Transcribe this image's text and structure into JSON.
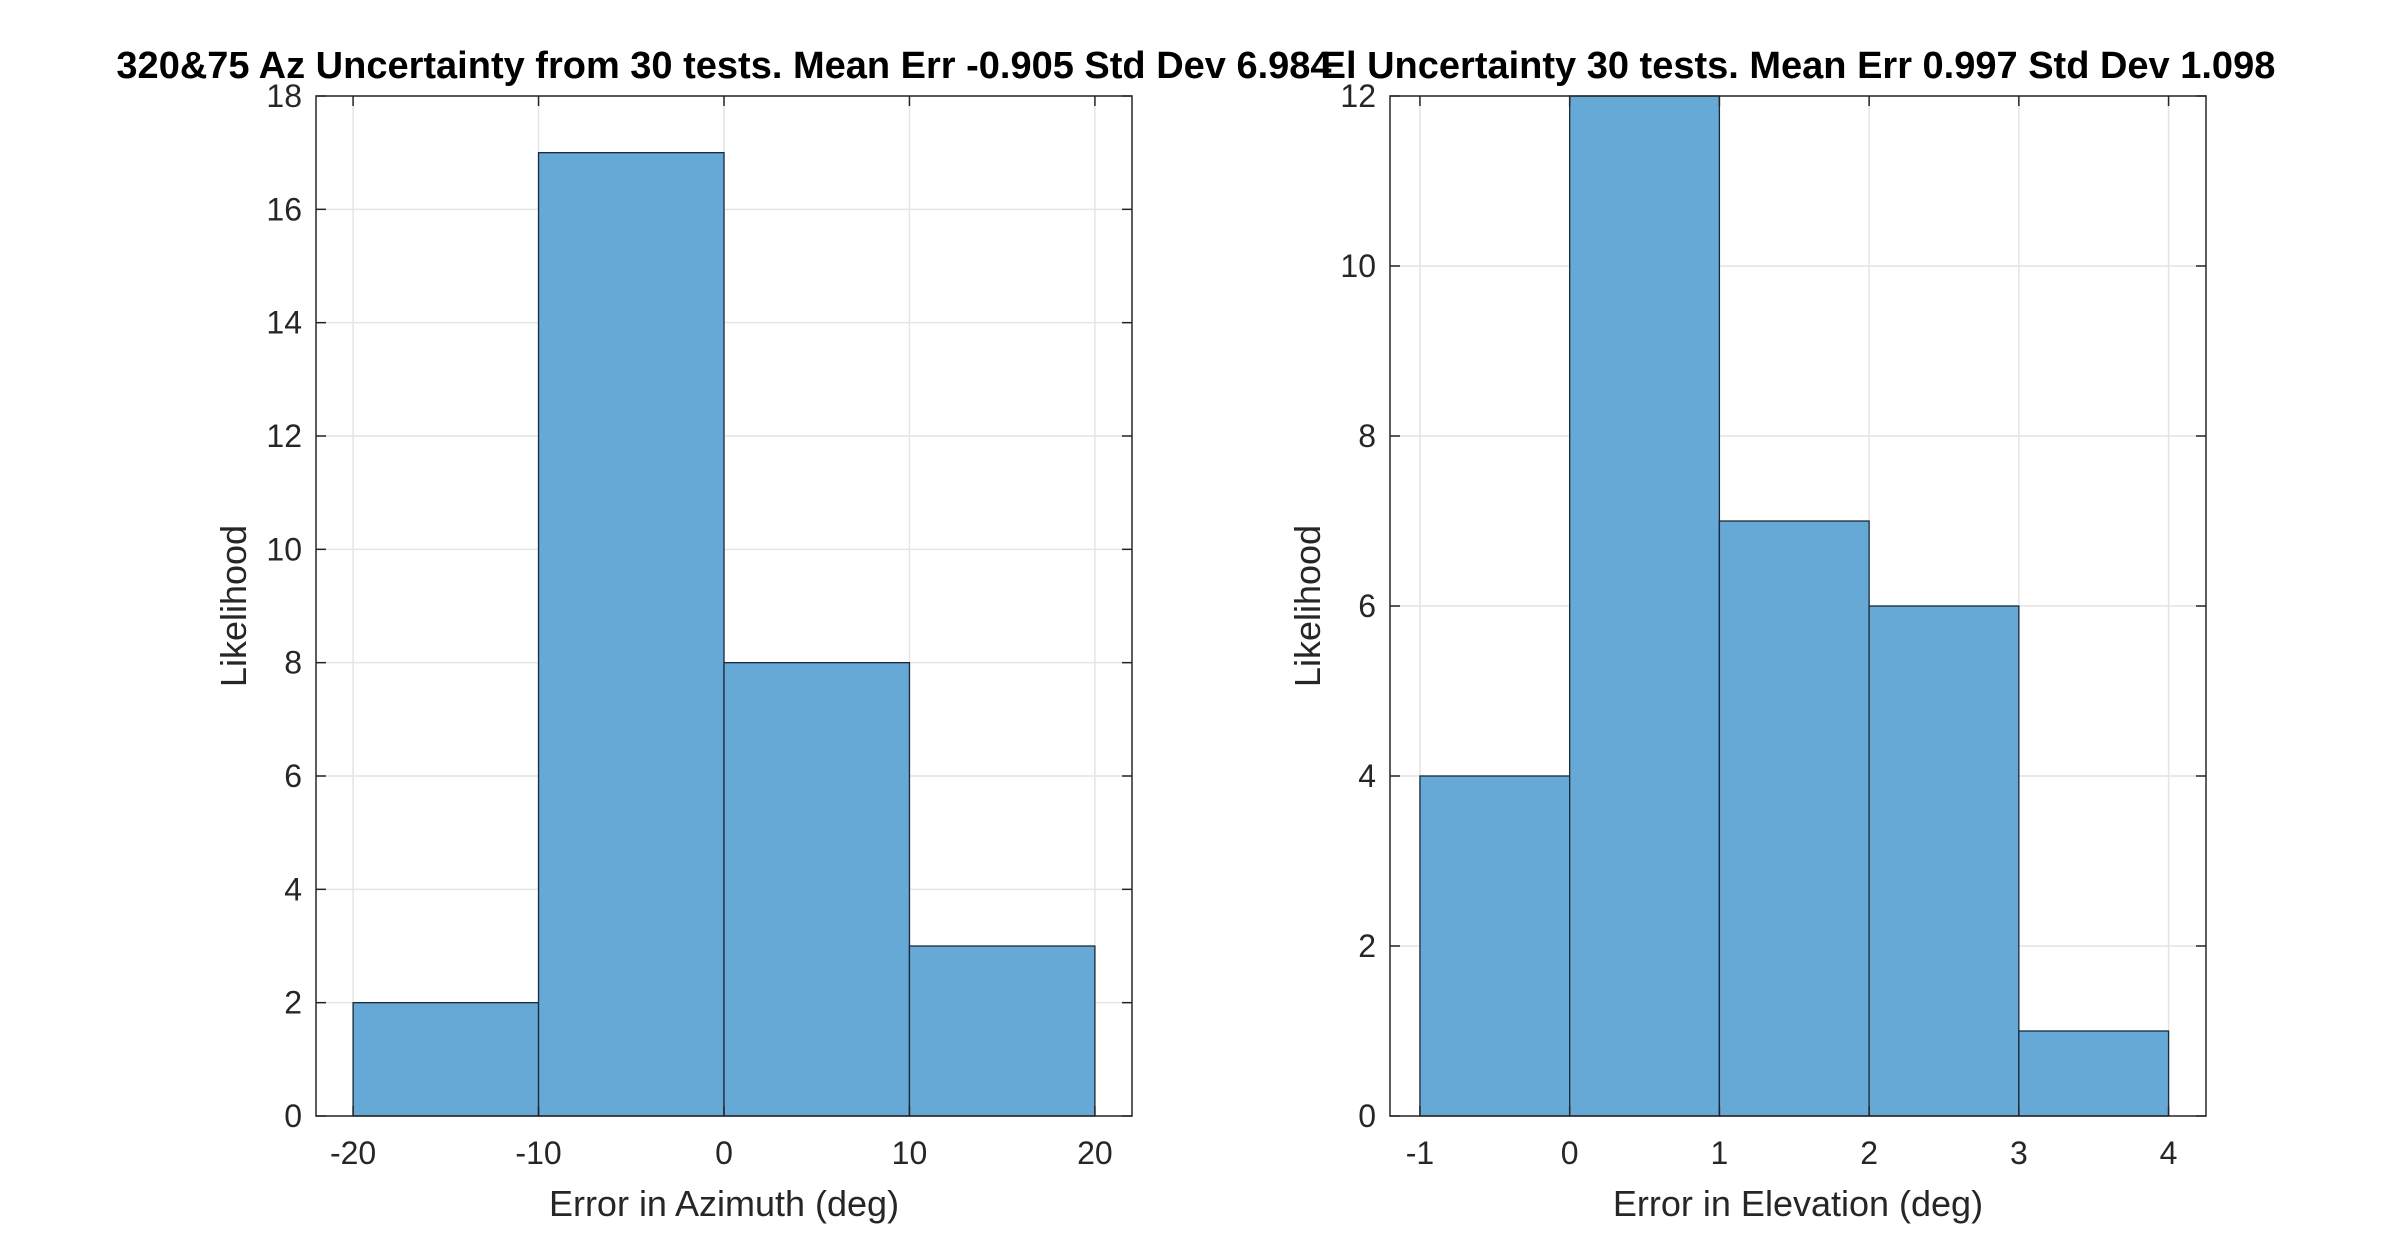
{
  "chart_data": [
    {
      "type": "bar",
      "title": "320&75 Az Uncertainty from 30 tests. Mean Err -0.905 Std Dev 6.984",
      "xlabel": "Error in Azimuth (deg)",
      "ylabel": "Likelihood",
      "bin_edges": [
        -20,
        -10,
        0,
        10,
        20
      ],
      "values": [
        2,
        17,
        8,
        3
      ],
      "xlim": [
        -22,
        22
      ],
      "ylim": [
        0,
        18
      ],
      "xticks": [
        -20,
        -10,
        0,
        10,
        20
      ],
      "yticks": [
        0,
        2,
        4,
        6,
        8,
        10,
        12,
        14,
        16,
        18
      ],
      "grid": true,
      "bar_color": "#67A9D6",
      "edge_color": "#1a2a3a"
    },
    {
      "type": "bar",
      "title": "El Uncertainty 30 tests. Mean Err 0.997 Std Dev 1.098",
      "xlabel": "Error in Elevation (deg)",
      "ylabel": "Likelihood",
      "bin_edges": [
        -1,
        0,
        1,
        2,
        3,
        4
      ],
      "values": [
        4,
        12,
        7,
        6,
        1
      ],
      "xlim": [
        -1.2,
        4.25
      ],
      "ylim": [
        0,
        12
      ],
      "xticks": [
        -1,
        0,
        1,
        2,
        3,
        4
      ],
      "yticks": [
        0,
        2,
        4,
        6,
        8,
        10,
        12
      ],
      "grid": true,
      "bar_color": "#67A9D6",
      "edge_color": "#1a2a3a"
    }
  ]
}
